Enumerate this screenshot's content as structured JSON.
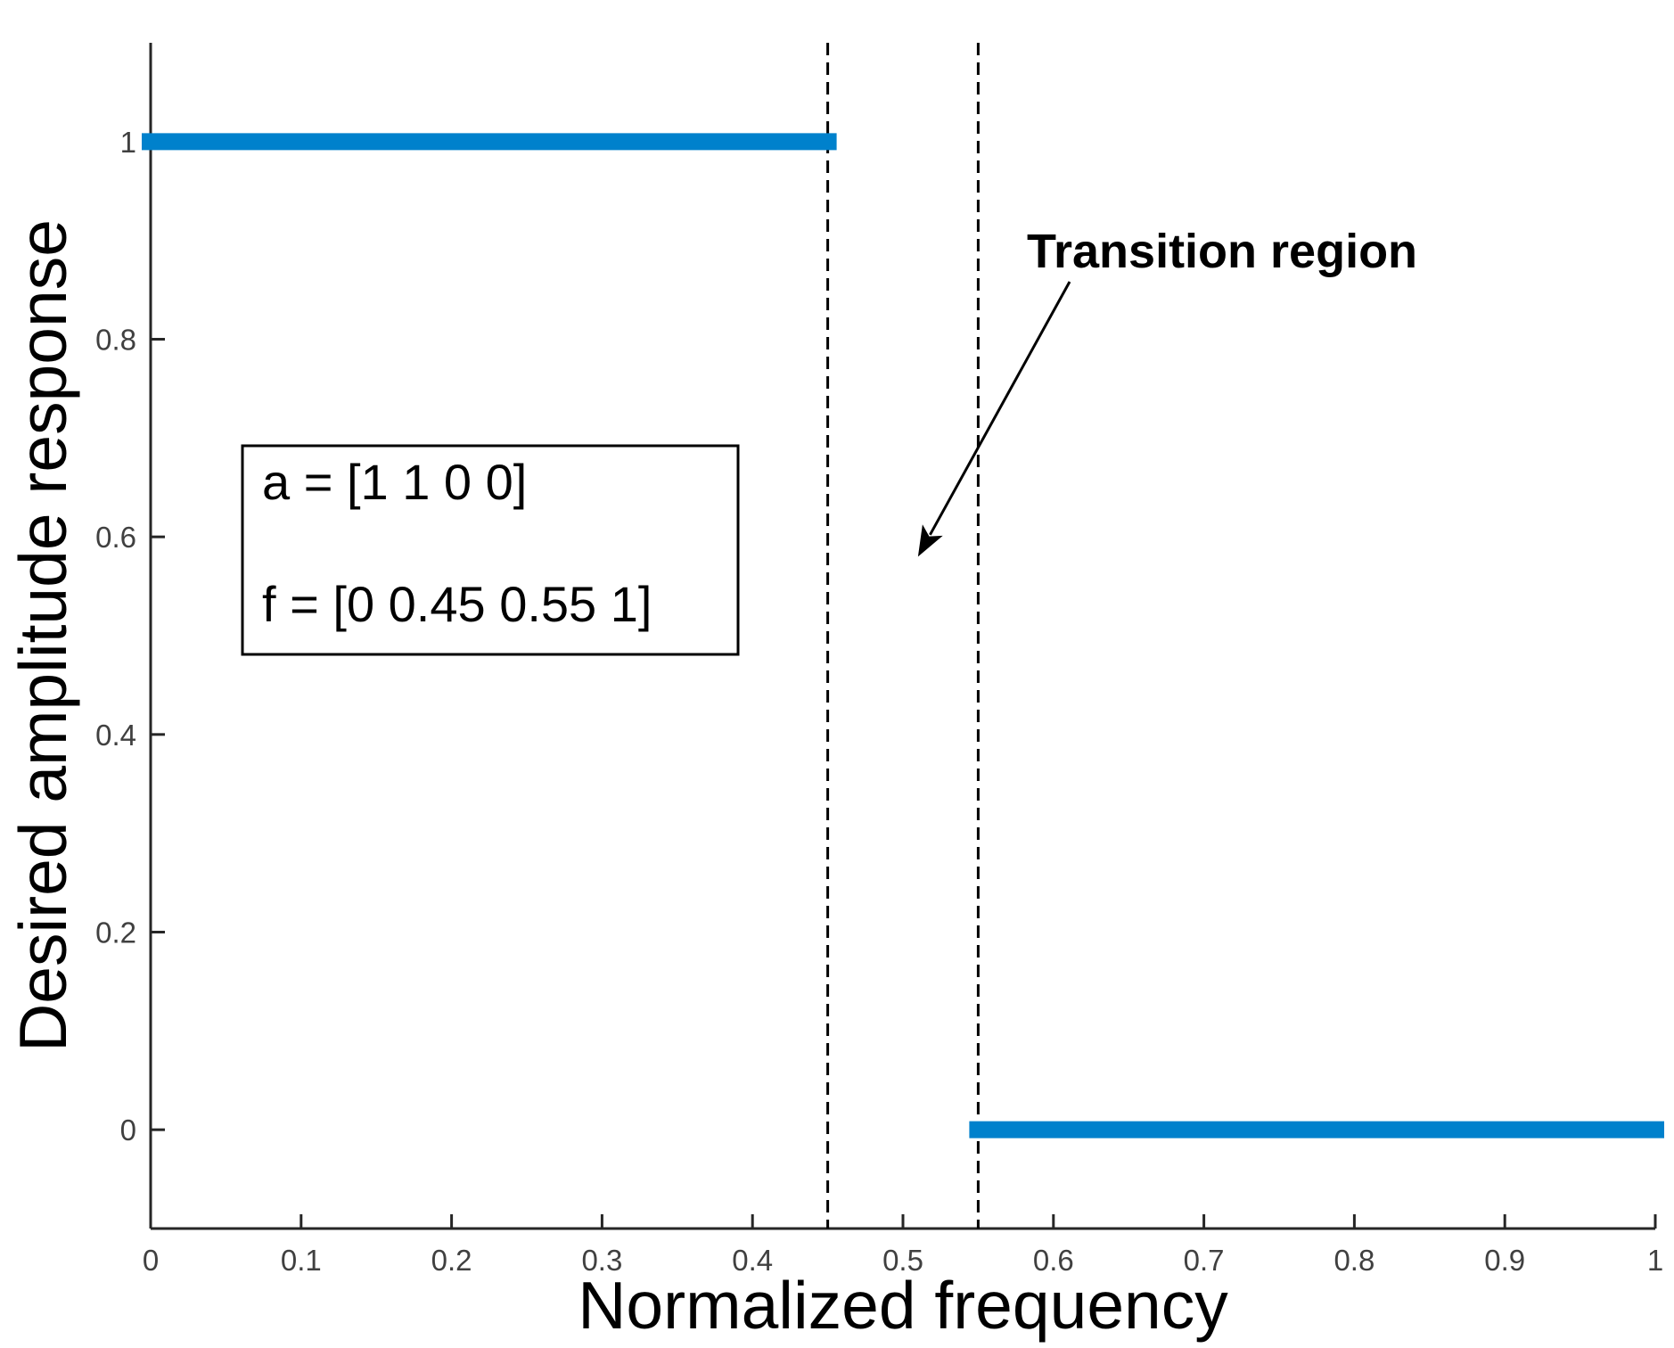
{
  "chart_data": {
    "type": "line",
    "xlabel": "Normalized frequency",
    "ylabel": "Desired amplitude response",
    "xlim": [
      0,
      1
    ],
    "ylim": [
      -0.1,
      1.1
    ],
    "xticks": [
      0,
      0.1,
      0.2,
      0.3,
      0.4,
      0.5,
      0.6,
      0.7,
      0.8,
      0.9,
      1
    ],
    "xtick_labels": [
      "0",
      "0.1",
      "0.2",
      "0.3",
      "0.4",
      "0.5",
      "0.6",
      "0.7",
      "0.8",
      "0.9",
      "1"
    ],
    "yticks": [
      0,
      0.2,
      0.4,
      0.6,
      0.8,
      1
    ],
    "ytick_labels": [
      "0",
      "0.2",
      "0.4",
      "0.6",
      "0.8",
      "1"
    ],
    "grid": false,
    "series_color": "#0081cc",
    "segments": [
      {
        "x": [
          0,
          0.45
        ],
        "y": [
          1,
          1
        ]
      },
      {
        "x": [
          0.55,
          1
        ],
        "y": [
          0,
          0
        ]
      }
    ],
    "vertical_lines": [
      0.45,
      0.55
    ],
    "annotation": {
      "text": "Transition region",
      "arrow_to": [
        0.51,
        0.58
      ]
    },
    "parameter_box": {
      "line1": "a = [1 1 0 0]",
      "line2": "f = [0 0.45 0.55 1]"
    }
  }
}
